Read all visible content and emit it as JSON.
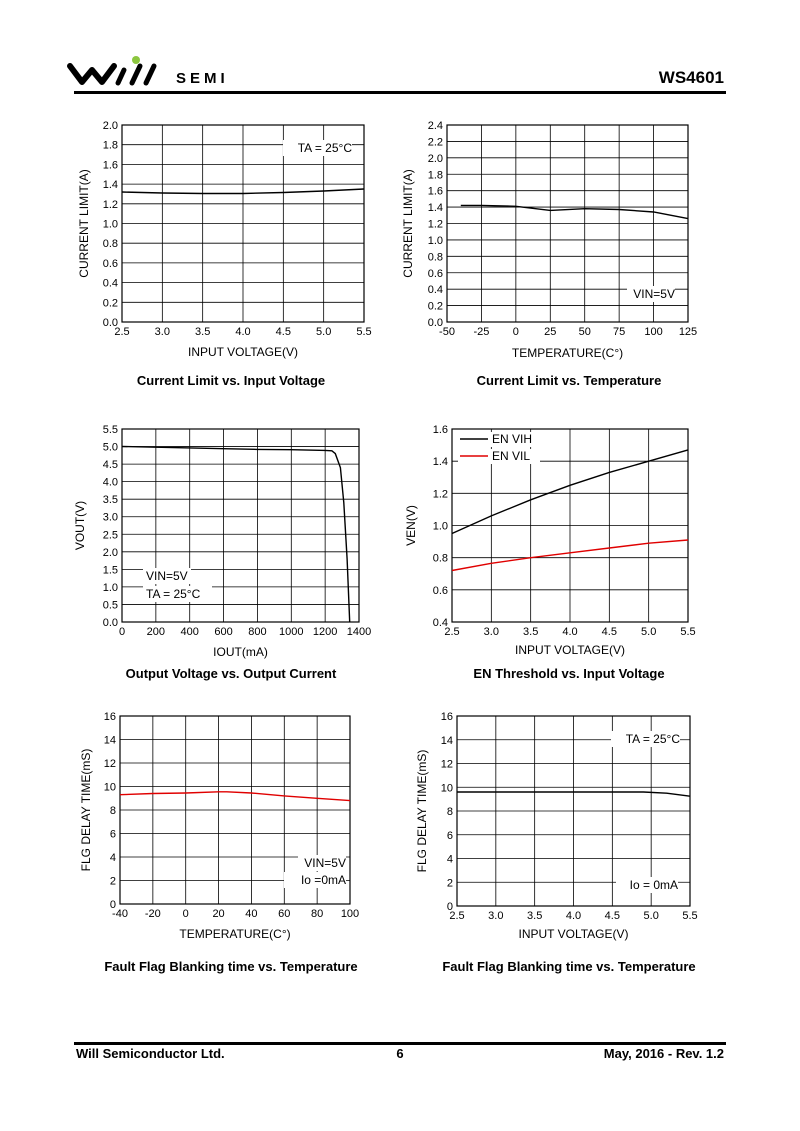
{
  "header": {
    "logo_text": "SEMI",
    "doc_id": "WS4601"
  },
  "footer": {
    "company": "Will Semiconductor Ltd.",
    "page": "6",
    "date_rev": "May, 2016 - Rev. 1.2"
  },
  "chart_data": [
    {
      "type": "line",
      "caption": "Current Limit vs. Input Voltage",
      "xlabel": "INPUT VOLTAGE(V)",
      "ylabel": "CURRENT LIMIT(A)",
      "xlim": [
        2.5,
        5.5
      ],
      "ylim": [
        0,
        2.0
      ],
      "xticks": [
        2.5,
        3.0,
        3.5,
        4.0,
        4.5,
        5.0,
        5.5
      ],
      "xtick_labels": [
        "2.5",
        "3.0",
        "3.5",
        "4.0",
        "4.5",
        "5.0",
        "5.5"
      ],
      "yticks": [
        0,
        0.2,
        0.4,
        0.6,
        0.8,
        1.0,
        1.2,
        1.4,
        1.6,
        1.8,
        2.0
      ],
      "ytick_labels": [
        "0.0",
        "0.2",
        "0.4",
        "0.6",
        "0.8",
        "1.0",
        "1.2",
        "1.4",
        "1.6",
        "1.8",
        "2.0"
      ],
      "grid": true,
      "annotations": [
        {
          "text": "TA = 25°C",
          "position": "top-right"
        }
      ],
      "series": [
        {
          "color": "#000000",
          "x": [
            2.5,
            3.0,
            3.5,
            4.0,
            4.5,
            5.0,
            5.5
          ],
          "y": [
            1.32,
            1.31,
            1.305,
            1.305,
            1.315,
            1.33,
            1.35
          ]
        }
      ]
    },
    {
      "type": "line",
      "caption": "Current Limit vs. Temperature",
      "xlabel": "TEMPERATURE(C°)",
      "ylabel": "CURRENT LIMIT(A)",
      "xlim": [
        -50,
        125
      ],
      "ylim": [
        0,
        2.4
      ],
      "xticks": [
        -50,
        -25,
        0,
        25,
        50,
        75,
        100,
        125
      ],
      "xtick_labels": [
        "-50",
        "-25",
        "0",
        "25",
        "50",
        "75",
        "100",
        "125"
      ],
      "yticks": [
        0,
        0.2,
        0.4,
        0.6,
        0.8,
        1.0,
        1.2,
        1.4,
        1.6,
        1.8,
        2.0,
        2.2,
        2.4
      ],
      "ytick_labels": [
        "0.0",
        "0.2",
        "0.4",
        "0.6",
        "0.8",
        "1.0",
        "1.2",
        "1.4",
        "1.6",
        "1.8",
        "2.0",
        "2.2",
        "2.4"
      ],
      "grid": true,
      "annotations": [
        {
          "text": "VIN=5V",
          "position": "bottom-right"
        }
      ],
      "series": [
        {
          "color": "#000000",
          "x": [
            -40,
            -25,
            0,
            25,
            50,
            75,
            100,
            125
          ],
          "y": [
            1.42,
            1.42,
            1.41,
            1.36,
            1.38,
            1.37,
            1.34,
            1.26
          ]
        }
      ]
    },
    {
      "type": "line",
      "caption": "Output Voltage vs. Output Current",
      "xlabel": "IOUT(mA)",
      "ylabel": "VOUT(V)",
      "xlim": [
        0,
        1400
      ],
      "ylim": [
        0,
        5.5
      ],
      "xticks": [
        0,
        200,
        400,
        600,
        800,
        1000,
        1200,
        1400
      ],
      "xtick_labels": [
        "0",
        "200",
        "400",
        "600",
        "800",
        "1000",
        "1200",
        "1400"
      ],
      "yticks": [
        0,
        0.5,
        1.0,
        1.5,
        2.0,
        2.5,
        3.0,
        3.5,
        4.0,
        4.5,
        5.0,
        5.5
      ],
      "ytick_labels": [
        "0.0",
        "0.5",
        "1.0",
        "1.5",
        "2.0",
        "2.5",
        "3.0",
        "3.5",
        "4.0",
        "4.5",
        "5.0",
        "5.5"
      ],
      "grid": true,
      "annotations": [
        {
          "text": "VIN=5V",
          "position": "bottom-left"
        },
        {
          "text": "TA = 25°C",
          "position": "bottom-left"
        }
      ],
      "series": [
        {
          "color": "#000000",
          "x": [
            0,
            200,
            400,
            600,
            800,
            1000,
            1200,
            1240,
            1260,
            1290,
            1310,
            1330,
            1345
          ],
          "y": [
            5.0,
            4.98,
            4.96,
            4.94,
            4.92,
            4.91,
            4.89,
            4.88,
            4.8,
            4.4,
            3.4,
            1.8,
            0.0
          ]
        }
      ]
    },
    {
      "type": "line",
      "caption": "EN Threshold vs. Input Voltage",
      "xlabel": "INPUT VOLTAGE(V)",
      "ylabel": "VEN(V)",
      "xlim": [
        2.5,
        5.5
      ],
      "ylim": [
        0.4,
        1.6
      ],
      "xticks": [
        2.5,
        3.0,
        3.5,
        4.0,
        4.5,
        5.0,
        5.5
      ],
      "xtick_labels": [
        "2.5",
        "3.0",
        "3.5",
        "4.0",
        "4.5",
        "5.0",
        "5.5"
      ],
      "yticks": [
        0.4,
        0.6,
        0.8,
        1.0,
        1.2,
        1.4,
        1.6
      ],
      "ytick_labels": [
        "0.4",
        "0.6",
        "0.8",
        "1.0",
        "1.2",
        "1.4",
        "1.6"
      ],
      "grid": true,
      "legend": "top-left",
      "series": [
        {
          "name": "EN VIH",
          "color": "#000000",
          "x": [
            2.5,
            3.0,
            3.5,
            4.0,
            4.5,
            5.0,
            5.5
          ],
          "y": [
            0.95,
            1.06,
            1.16,
            1.25,
            1.33,
            1.4,
            1.47
          ]
        },
        {
          "name": "EN VIL",
          "color": "#e00000",
          "x": [
            2.5,
            3.0,
            3.5,
            4.0,
            4.5,
            5.0,
            5.5
          ],
          "y": [
            0.72,
            0.765,
            0.8,
            0.83,
            0.86,
            0.89,
            0.91
          ]
        }
      ]
    },
    {
      "type": "line",
      "caption": "Fault Flag Blanking time vs. Temperature",
      "xlabel": "TEMPERATURE(C°)",
      "ylabel": "FLG DELAY TIME(mS)",
      "xlim": [
        -40,
        100
      ],
      "ylim": [
        0,
        16
      ],
      "xticks": [
        -40,
        -20,
        0,
        20,
        40,
        60,
        80,
        100
      ],
      "xtick_labels": [
        "-40",
        "-20",
        "0",
        "20",
        "40",
        "60",
        "80",
        "100"
      ],
      "yticks": [
        0,
        2,
        4,
        6,
        8,
        10,
        12,
        14,
        16
      ],
      "ytick_labels": [
        "0",
        "2",
        "4",
        "6",
        "8",
        "10",
        "12",
        "14",
        "16"
      ],
      "grid": true,
      "annotations": [
        {
          "text": "VIN=5V",
          "position": "bottom-right"
        },
        {
          "text": "Io  =0mA",
          "position": "bottom-right"
        }
      ],
      "series": [
        {
          "color": "#e00000",
          "x": [
            -40,
            -20,
            0,
            20,
            25,
            40,
            60,
            80,
            100
          ],
          "y": [
            9.3,
            9.4,
            9.45,
            9.55,
            9.55,
            9.45,
            9.2,
            9.0,
            8.8
          ]
        }
      ]
    },
    {
      "type": "line",
      "caption": "Fault Flag Blanking time vs. Temperature",
      "xlabel": "INPUT VOLTAGE(V)",
      "ylabel": "FLG DELAY TIME(mS)",
      "xlim": [
        2.5,
        5.5
      ],
      "ylim": [
        0,
        16
      ],
      "xticks": [
        2.5,
        3.0,
        3.5,
        4.0,
        4.5,
        5.0,
        5.5
      ],
      "xtick_labels": [
        "2.5",
        "3.0",
        "3.5",
        "4.0",
        "4.5",
        "5.0",
        "5.5"
      ],
      "yticks": [
        0,
        2,
        4,
        6,
        8,
        10,
        12,
        14,
        16
      ],
      "ytick_labels": [
        "0",
        "2",
        "4",
        "6",
        "8",
        "10",
        "12",
        "14",
        "16"
      ],
      "grid": true,
      "annotations": [
        {
          "text": "TA = 25°C",
          "position": "top-right"
        },
        {
          "text": "Io = 0mA",
          "position": "bottom-right"
        }
      ],
      "series": [
        {
          "color": "#000000",
          "x": [
            2.5,
            3.0,
            3.5,
            4.0,
            4.5,
            4.9,
            5.2,
            5.5
          ],
          "y": [
            9.6,
            9.6,
            9.6,
            9.6,
            9.6,
            9.6,
            9.5,
            9.25
          ]
        }
      ]
    }
  ]
}
